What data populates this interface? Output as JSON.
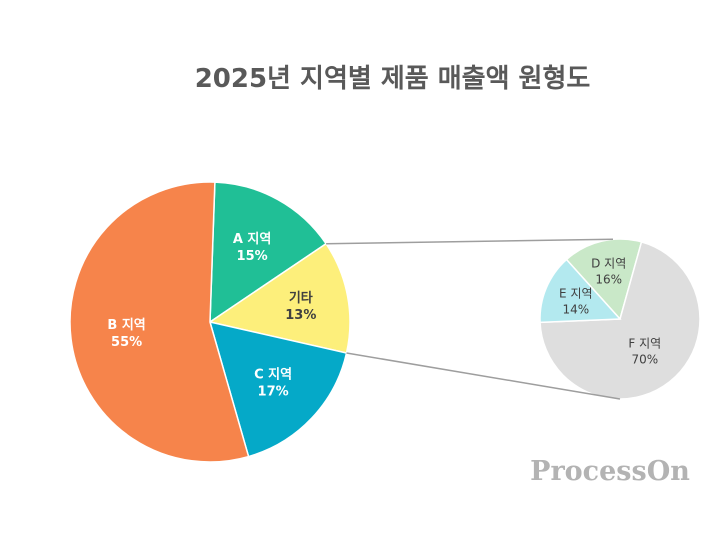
{
  "chart_data": {
    "type": "pie",
    "title": "2025년 지역별 제품 매출액 원형도",
    "main": {
      "slices": [
        {
          "name": "A 지역",
          "value": 15,
          "label": "15%",
          "color": "#20bf96"
        },
        {
          "name": "기타",
          "value": 13,
          "label": "13%",
          "color": "#fdef7b"
        },
        {
          "name": "C 지역",
          "value": 17,
          "label": "17%",
          "color": "#05a9c8"
        },
        {
          "name": "B 지역",
          "value": 55,
          "label": "55%",
          "color": "#f6844b"
        }
      ]
    },
    "detail": {
      "of": "기타",
      "slices": [
        {
          "name": "D 지역",
          "value": 16,
          "label": "16%",
          "color": "#c9e8c8"
        },
        {
          "name": "F 지역",
          "value": 70,
          "label": "70%",
          "color": "#dedede"
        },
        {
          "name": "E 지역",
          "value": 14,
          "label": "14%",
          "color": "#b3e9ef"
        }
      ]
    },
    "watermark": "ProcessOn"
  }
}
